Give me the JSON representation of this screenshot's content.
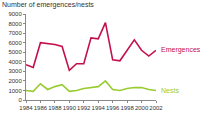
{
  "chart_data": {
    "type": "line",
    "y_label": "Number of emergences/nests",
    "x": [
      1984,
      1985,
      1986,
      1987,
      1988,
      1989,
      1990,
      1991,
      1992,
      1993,
      1994,
      1995,
      1996,
      1997,
      1998,
      1999,
      2000,
      2001,
      2002
    ],
    "series": [
      {
        "name": "Emergences",
        "color": "#c4104a",
        "values": [
          3700,
          3400,
          6000,
          5900,
          5800,
          5600,
          3100,
          3800,
          3800,
          6500,
          6400,
          8100,
          4200,
          4100,
          5200,
          6300,
          5200,
          4600,
          5200
        ]
      },
      {
        "name": "Nests",
        "color": "#99cc33",
        "values": [
          1000,
          900,
          1700,
          1100,
          1400,
          1600,
          900,
          1000,
          1200,
          1300,
          1400,
          2000,
          1100,
          1000,
          1200,
          1300,
          1300,
          1100,
          1000
        ]
      }
    ],
    "xlim": [
      1984,
      2002
    ],
    "xticks": [
      1984,
      1986,
      1988,
      1990,
      1992,
      1994,
      1996,
      1998,
      2000,
      2002
    ],
    "ylim": [
      0,
      9000
    ],
    "yticks": [
      0,
      1000,
      2000,
      3000,
      4000,
      5000,
      6000,
      7000,
      8000,
      9000
    ],
    "grid": false
  }
}
